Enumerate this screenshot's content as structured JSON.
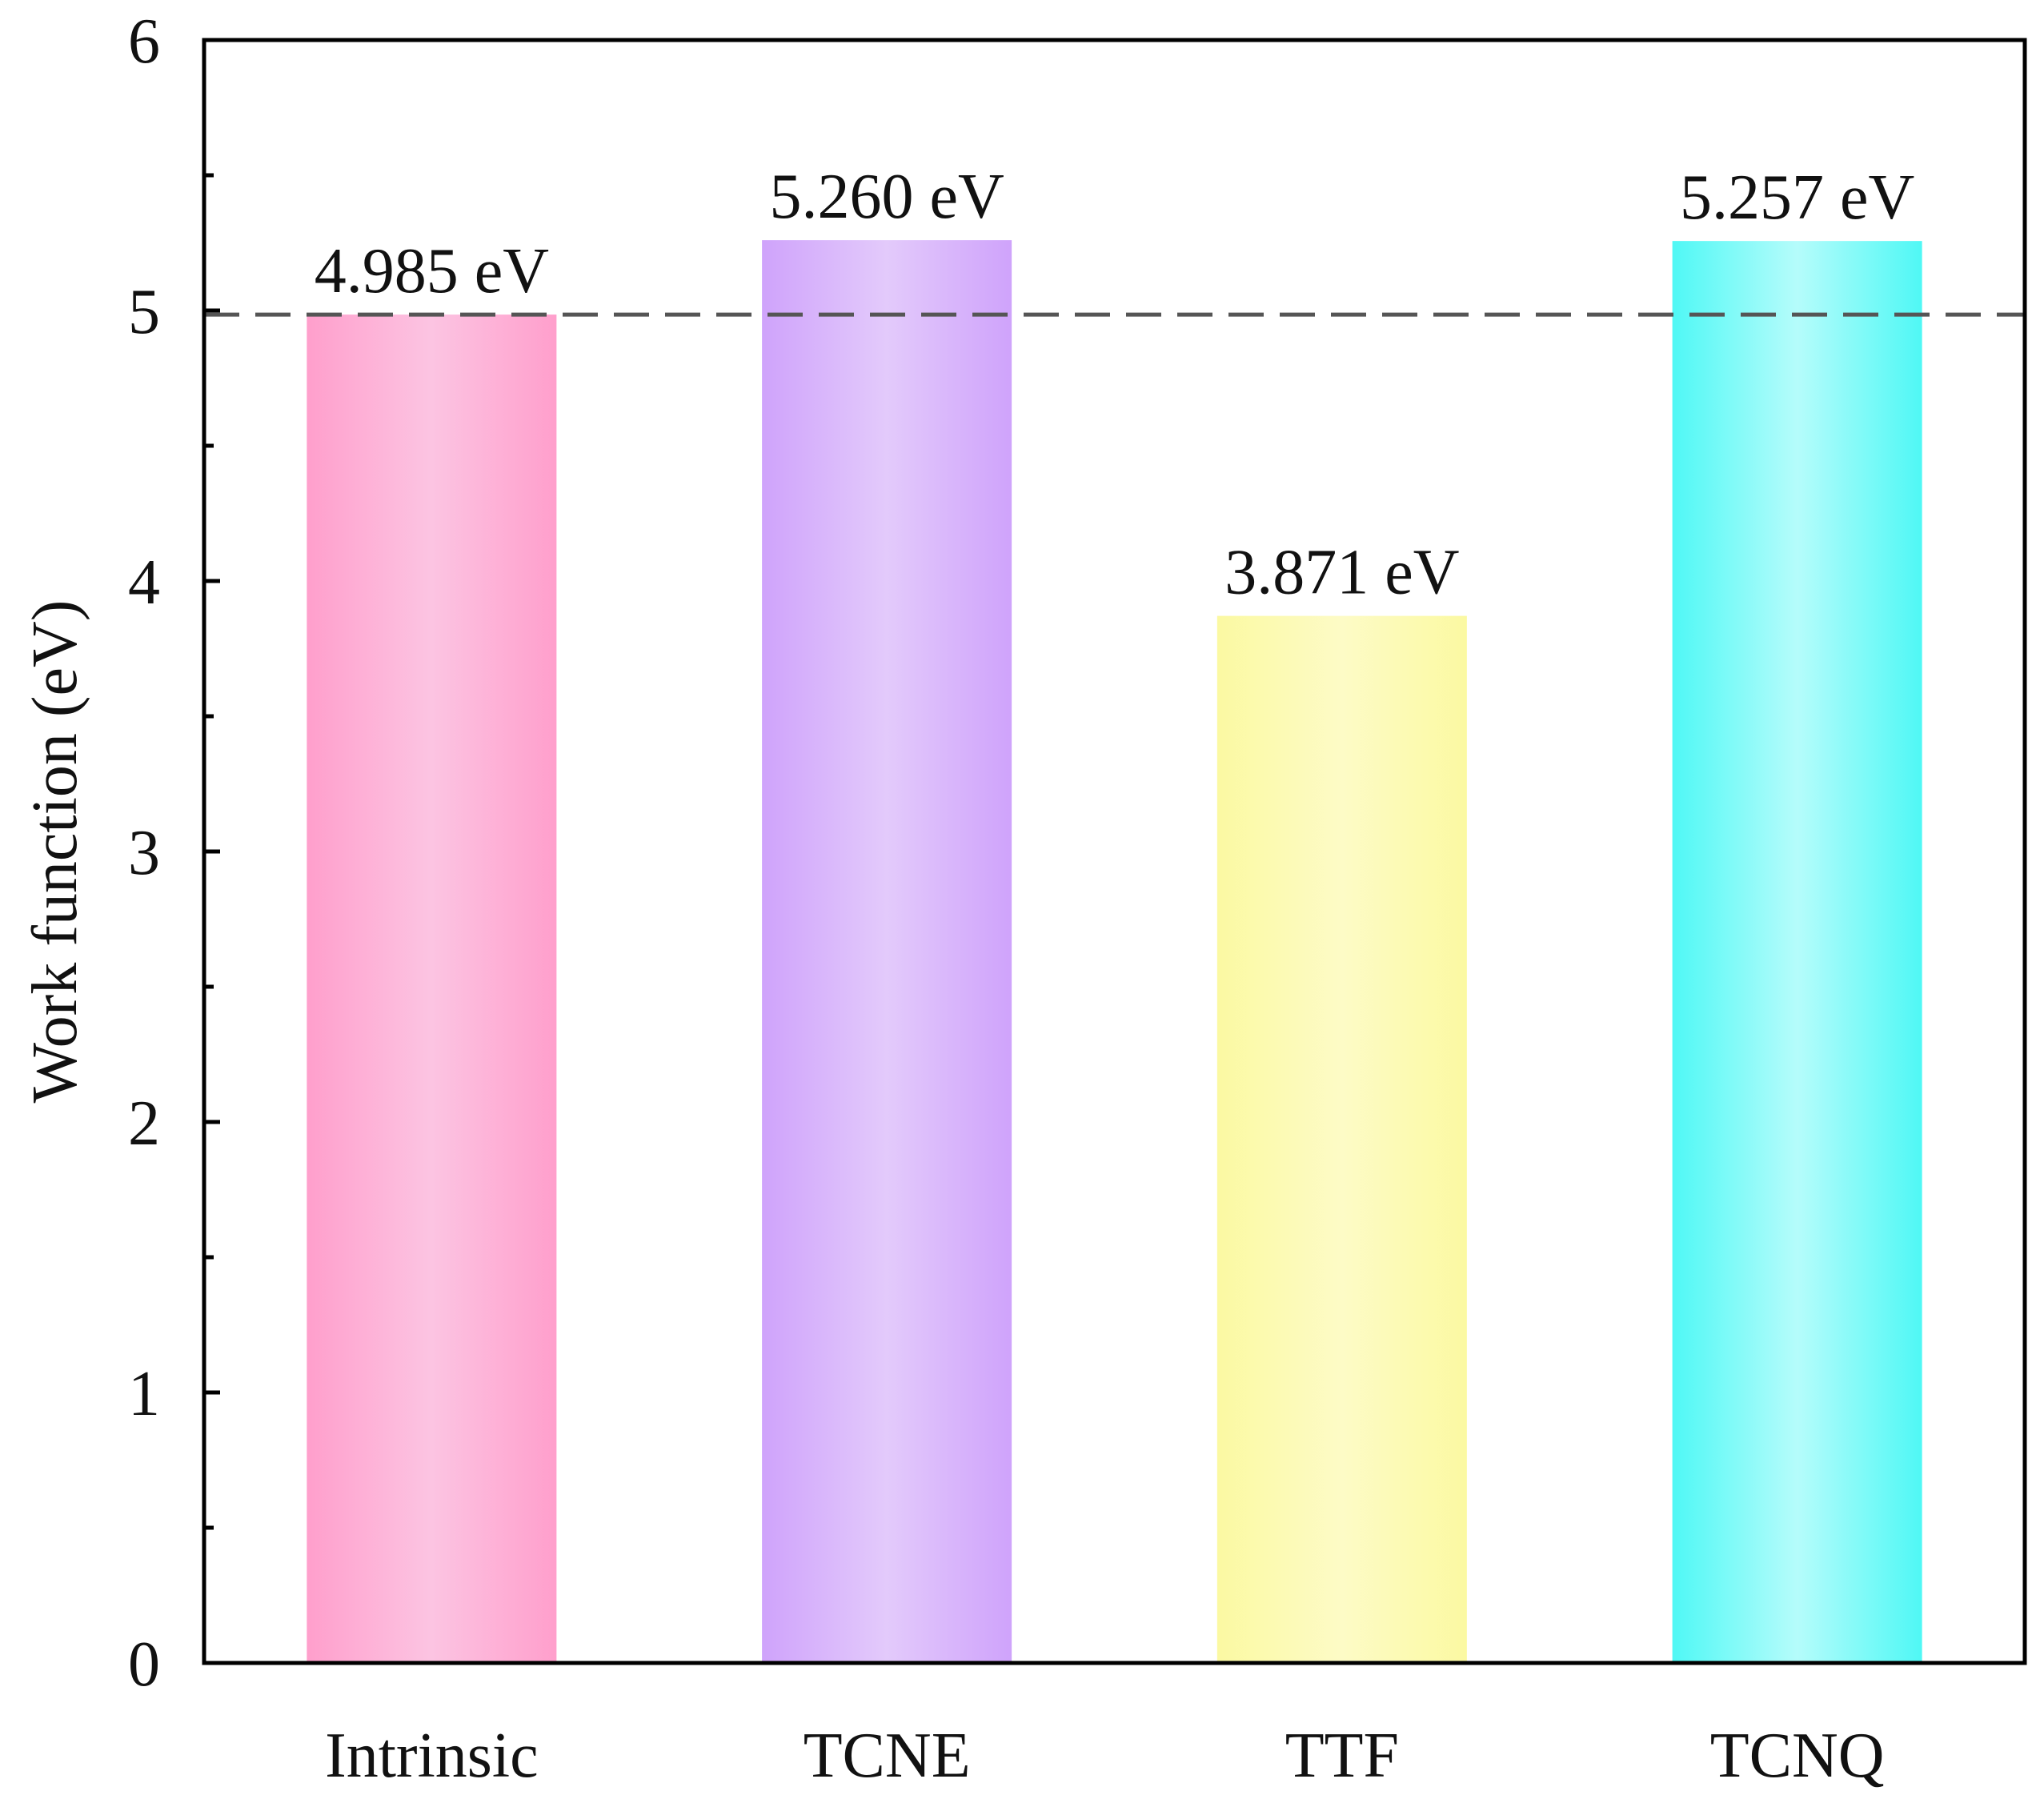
{
  "chart_data": {
    "type": "bar",
    "title": "",
    "xlabel": "",
    "ylabel": "Work function (eV)",
    "categories": [
      "Intrinsic",
      "TCNE",
      "TTF",
      "TCNQ"
    ],
    "values": [
      4.985,
      5.26,
      3.871,
      5.257
    ],
    "data_labels": [
      "4.985 eV",
      "5.260 eV",
      "3.871 eV",
      "5.257 eV"
    ],
    "colors": [
      {
        "edge": "#ff9fcc",
        "center": "#fcc4e2"
      },
      {
        "edge": "#cfa3fb",
        "center": "#e3cafb"
      },
      {
        "edge": "#fbf9a2",
        "center": "#fdfbc6"
      },
      {
        "edge": "#4ff8f5",
        "center": "#b5fcfb"
      }
    ],
    "ylim": [
      0,
      6
    ],
    "yticks": [
      "0",
      "1",
      "2",
      "3",
      "4",
      "5",
      "6"
    ],
    "reference_line": {
      "value": 4.985,
      "style": "dashed",
      "color": "#555555"
    },
    "grid": false,
    "legend": "none"
  }
}
